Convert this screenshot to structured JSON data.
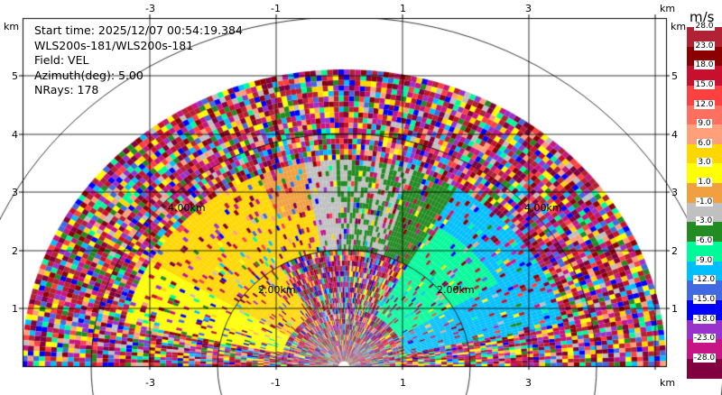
{
  "info": {
    "start_time": "Start time: 2025/12/07 00:54:19.384",
    "instrument": "WLS200s-181/WLS200s-181",
    "field": "Field: VEL",
    "azimuth": "Azimuth(deg): 5.00",
    "nrays": "NRays: 178"
  },
  "axis": {
    "x_ticks": [
      "-3",
      "-1",
      "1",
      "3"
    ],
    "y_ticks": [
      "1",
      "2",
      "3",
      "4",
      "5"
    ],
    "unit": "km"
  },
  "ring_labels": {
    "inner_left": "2.00km",
    "inner_right": "2.00km",
    "outer_left": "4.00km",
    "outer_right": "4.00km"
  },
  "colorbar": {
    "unit": "m/s",
    "labels": [
      "28.0",
      "23.0",
      "18.0",
      "15.0",
      "12.0",
      "9.0",
      "6.0",
      "3.0",
      "1.0",
      "-1.0",
      "-3.0",
      "-6.0",
      "-9.0",
      "-12.0",
      "-15.0",
      "-18.0",
      "-23.0",
      "-28.0"
    ],
    "colors": [
      "#b22234",
      "#8b0000",
      "#c8102e",
      "#ff4040",
      "#ff7060",
      "#ffa07a",
      "#ffd700",
      "#ffff00",
      "#f0a040",
      "#c0c0c0",
      "#228b22",
      "#00fa9a",
      "#00bfff",
      "#4169e1",
      "#0000ff",
      "#9932cc",
      "#c71585",
      "#800040"
    ]
  }
}
